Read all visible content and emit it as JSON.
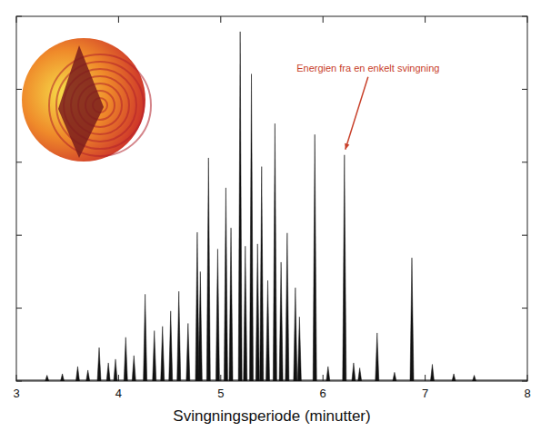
{
  "chart_data": {
    "type": "bar",
    "x_label": "Svingningsperiode (minutter)",
    "x": [
      3.3,
      3.45,
      3.6,
      3.7,
      3.81,
      3.9,
      3.97,
      4.07,
      4.15,
      4.26,
      4.35,
      4.43,
      4.51,
      4.59,
      4.68,
      4.77,
      4.8,
      4.88,
      4.97,
      5.05,
      5.1,
      5.19,
      5.24,
      5.3,
      5.36,
      5.4,
      5.46,
      5.53,
      5.59,
      5.65,
      5.73,
      5.77,
      5.92,
      6.05,
      6.21,
      6.3,
      6.36,
      6.53,
      6.7,
      6.87,
      7.07,
      7.28,
      7.48
    ],
    "values": [
      0.08,
      0.1,
      0.2,
      0.15,
      0.46,
      0.25,
      0.3,
      0.6,
      0.35,
      1.19,
      0.69,
      0.75,
      0.96,
      1.23,
      0.79,
      2.04,
      1.5,
      3.06,
      1.81,
      2.65,
      2.1,
      4.79,
      1.85,
      4.21,
      1.88,
      2.94,
      1.38,
      3.53,
      1.63,
      2.03,
      1.28,
      0.88,
      3.38,
      0.2,
      3.1,
      0.25,
      0.18,
      0.66,
      0.12,
      1.69,
      0.23,
      0.1,
      0.08
    ],
    "color": "#111111",
    "xlim": [
      3,
      8
    ],
    "xticks": [
      3,
      4,
      5,
      6,
      7,
      8
    ],
    "ylim": [
      0,
      5
    ],
    "yticks": [
      0,
      1,
      2,
      3,
      4,
      5
    ],
    "tick_labels": "x",
    "annotations": [
      {
        "text": "Energien fra en enkelt svingning",
        "x": 6.21,
        "y": 3.1
      }
    ]
  }
}
